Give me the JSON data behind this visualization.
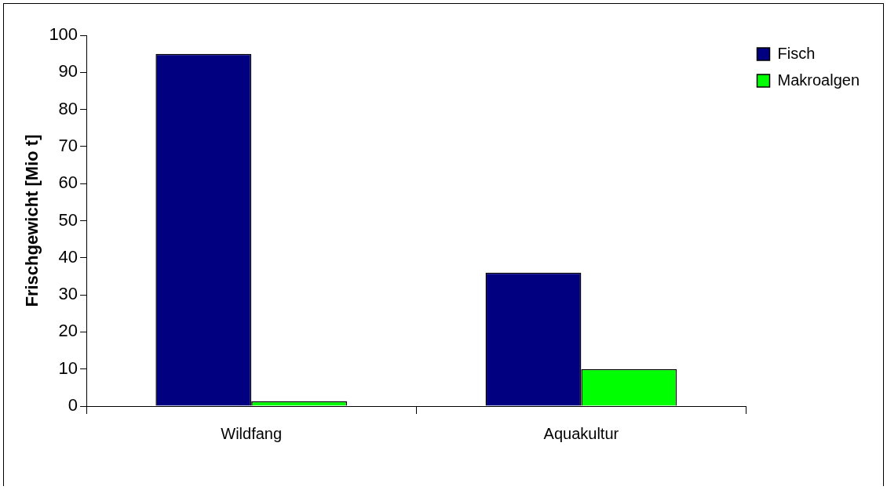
{
  "chart_data": {
    "type": "bar",
    "ylabel": "Frischgewicht [Mio t]",
    "categories": [
      "Wildfang",
      "Aquakultur"
    ],
    "series": [
      {
        "name": "Fisch",
        "color": "#000080",
        "values": [
          95,
          36
        ]
      },
      {
        "name": "Makroalgen",
        "color": "#00ff00",
        "values": [
          1.3,
          10
        ]
      }
    ],
    "ylim": [
      0,
      100
    ],
    "yticks": [
      0,
      10,
      20,
      30,
      40,
      50,
      60,
      70,
      80,
      90,
      100
    ],
    "grid": false,
    "legend": "top right"
  }
}
